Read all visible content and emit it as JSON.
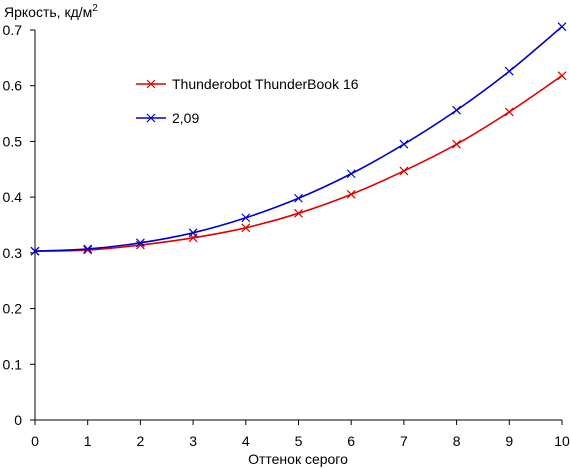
{
  "chart_data": {
    "type": "line",
    "ylabel": "Яркость, кд/м",
    "ylabel_superscript": "2",
    "xlabel": "Оттенок серого",
    "xlim": [
      0,
      10
    ],
    "ylim": [
      0,
      0.7
    ],
    "x_ticks": [
      "0",
      "1",
      "2",
      "3",
      "4",
      "5",
      "6",
      "7",
      "8",
      "9",
      "10"
    ],
    "y_ticks": [
      "0",
      "0.1",
      "0.2",
      "0.3",
      "0.4",
      "0.5",
      "0.6",
      "0.7"
    ],
    "grid": false,
    "legend_position": "top-left",
    "x": [
      0,
      1,
      2,
      3,
      4,
      5,
      6,
      7,
      8,
      9,
      10
    ],
    "series": [
      {
        "name": "Thunderobot ThunderBook 16",
        "color": "#e00000",
        "values": [
          0.303,
          0.305,
          0.314,
          0.327,
          0.345,
          0.371,
          0.405,
          0.447,
          0.495,
          0.553,
          0.618
        ]
      },
      {
        "name": "2,09",
        "color": "#0000cc",
        "values": [
          0.303,
          0.307,
          0.318,
          0.336,
          0.363,
          0.398,
          0.442,
          0.495,
          0.556,
          0.626,
          0.706
        ]
      }
    ]
  }
}
